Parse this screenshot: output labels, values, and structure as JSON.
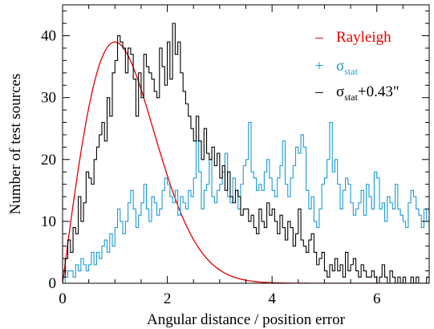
{
  "chart_data": {
    "type": "line",
    "title": "",
    "xlabel": "Angular distance / position error",
    "ylabel": "Number of test sources",
    "xlim": [
      0,
      7
    ],
    "ylim": [
      0,
      45
    ],
    "x_ticks": [
      0,
      2,
      4,
      6
    ],
    "y_ticks": [
      0,
      10,
      20,
      30,
      40
    ],
    "x_tick_labels": [
      "0",
      "2",
      "4",
      "6"
    ],
    "y_tick_labels": [
      "0",
      "10",
      "20",
      "30",
      "40"
    ],
    "x_minor_step": 0.5,
    "y_minor_step": 2,
    "grid": false,
    "legend_position": "top-right",
    "legend": [
      {
        "marker": "–",
        "label": "Rayleigh",
        "sub": "",
        "suffix": "",
        "color": "#e00000"
      },
      {
        "marker": "+",
        "label": "σ",
        "sub": "stat",
        "suffix": "",
        "color": "#1a9ad6"
      },
      {
        "marker": "–",
        "label": "σ",
        "sub": "stat",
        "suffix": "+0.43\"",
        "color": "#000000"
      }
    ],
    "series": [
      {
        "name": "Rayleigh",
        "style": "curve",
        "color": "#e00000",
        "function": "rayleigh",
        "peak_x": 1.0,
        "peak_y": 39
      },
      {
        "name": "σstat",
        "style": "step",
        "color": "#1a9ad6",
        "bin_start": 0.0,
        "bin_width": 0.05,
        "values": [
          0,
          1,
          2,
          2,
          1,
          3,
          2,
          4,
          3,
          2,
          3,
          5,
          3,
          5,
          4,
          6,
          7,
          5,
          8,
          6,
          9,
          12,
          10,
          8,
          10,
          13,
          15,
          12,
          9,
          11,
          13,
          16,
          12,
          10,
          14,
          13,
          11,
          12,
          15,
          17,
          16,
          14,
          13,
          15,
          11,
          14,
          13,
          12,
          15,
          14,
          17,
          23,
          18,
          12,
          15,
          16,
          20,
          14,
          13,
          15,
          16,
          18,
          21,
          14,
          13,
          17,
          15,
          12,
          16,
          19,
          20,
          26,
          18,
          17,
          15,
          16,
          15,
          18,
          20,
          17,
          15,
          14,
          17,
          19,
          23,
          16,
          14,
          17,
          19,
          22,
          21,
          24,
          22,
          15,
          12,
          14,
          10,
          9,
          12,
          16,
          17,
          20,
          26,
          18,
          20,
          16,
          12,
          15,
          17,
          16,
          13,
          11,
          12,
          13,
          15,
          11,
          16,
          14,
          12,
          18,
          17,
          12,
          13,
          10,
          14,
          13,
          12,
          16,
          12,
          11,
          10,
          9,
          13,
          15,
          14,
          12,
          11,
          9,
          12,
          10,
          13,
          12,
          11,
          9,
          14,
          12,
          10,
          13,
          11,
          12,
          12,
          9,
          8,
          10,
          9,
          11,
          8,
          12,
          10,
          9,
          13,
          10,
          9,
          12,
          11,
          12,
          13,
          14,
          12,
          13,
          15,
          15,
          13,
          12,
          8,
          4,
          5,
          6,
          7,
          8,
          7,
          6,
          5,
          6,
          7,
          6,
          10,
          11,
          8,
          6,
          10,
          11,
          8,
          7,
          10,
          8,
          7,
          12,
          6,
          8,
          7,
          10,
          9,
          8,
          6,
          11,
          10,
          9,
          8,
          9,
          10,
          9,
          11,
          10,
          8,
          7,
          5,
          8,
          7,
          6,
          10,
          8,
          7,
          6,
          9,
          7,
          5,
          4,
          6,
          7,
          5,
          6,
          4,
          3,
          4,
          6,
          5,
          3,
          7,
          5,
          4,
          4,
          5,
          6,
          3,
          2,
          1,
          3,
          2,
          1,
          0,
          2,
          1,
          0,
          1,
          2,
          1,
          0,
          0,
          2,
          1,
          1,
          0,
          2,
          0,
          0,
          1,
          2,
          1,
          0,
          1,
          0,
          2,
          1,
          3,
          2,
          0,
          1,
          2,
          3,
          2,
          1,
          2,
          0,
          1,
          3,
          2,
          1,
          2,
          0,
          1,
          1,
          0,
          2,
          3,
          1,
          2,
          0,
          1,
          0,
          1,
          2,
          3,
          2,
          1,
          3,
          2,
          1,
          2,
          3,
          1,
          2,
          3,
          2,
          1,
          2,
          3,
          2
        ]
      },
      {
        "name": "σstat+0.43\"",
        "style": "step",
        "color": "#000000",
        "bin_start": 0.0,
        "bin_width": 0.05,
        "values": [
          1,
          4,
          7,
          5,
          9,
          8,
          14,
          10,
          13,
          18,
          17,
          16,
          20,
          22,
          24,
          26,
          23,
          30,
          27,
          34,
          36,
          40,
          39,
          38,
          34,
          38,
          37,
          33,
          27,
          34,
          30,
          37,
          35,
          34,
          33,
          31,
          30,
          38,
          35,
          32,
          39,
          33,
          42,
          37,
          39,
          34,
          31,
          29,
          27,
          25,
          23,
          27,
          23,
          20,
          25,
          21,
          20,
          22,
          19,
          21,
          17,
          19,
          15,
          18,
          14,
          13,
          15,
          14,
          11,
          12,
          12,
          10,
          11,
          9,
          8,
          12,
          10,
          9,
          13,
          11,
          12,
          10,
          8,
          11,
          9,
          7,
          10,
          9,
          6,
          8,
          12,
          7,
          6,
          5,
          7,
          8,
          5,
          3,
          4,
          5,
          2,
          1,
          3,
          2,
          4,
          2,
          3,
          1,
          5,
          2,
          3,
          4,
          2,
          1,
          3,
          2,
          1,
          1,
          2,
          1,
          0,
          1,
          3,
          1,
          0,
          2,
          1,
          0,
          1,
          0,
          1,
          0,
          0,
          1,
          0,
          1,
          0,
          0,
          0,
          1,
          0,
          0,
          0,
          0,
          0,
          1,
          0,
          0,
          0,
          0,
          0,
          0,
          0,
          0,
          0,
          0,
          0,
          0,
          1,
          0,
          0,
          0,
          0,
          0,
          0,
          0,
          0,
          0,
          0,
          0,
          0,
          0,
          0,
          0,
          0,
          0,
          0,
          0,
          0,
          0,
          0,
          0,
          0,
          0,
          0,
          0,
          0,
          0,
          0,
          0,
          0,
          0,
          0,
          0,
          0,
          0,
          0,
          0,
          0,
          0,
          0,
          0,
          0,
          0,
          0,
          0,
          0,
          0,
          0,
          0,
          0,
          0,
          0,
          0,
          0,
          0,
          0,
          0,
          0,
          0,
          0,
          0,
          0,
          0,
          0,
          0,
          0,
          0,
          0,
          0,
          0,
          0,
          0,
          0,
          0,
          0,
          0,
          0,
          0,
          0,
          0,
          0,
          0,
          0,
          0,
          0,
          0,
          0,
          0,
          0,
          0,
          0,
          0,
          0,
          0,
          0,
          0,
          0,
          0,
          0,
          0,
          0,
          0,
          0,
          0,
          0,
          0,
          0,
          0,
          0,
          0,
          0,
          0,
          0,
          0,
          0,
          0,
          0,
          0,
          0,
          0,
          0,
          0,
          0,
          0,
          0,
          0,
          0,
          0,
          0,
          0,
          0,
          0,
          0,
          0,
          0,
          0,
          0,
          0,
          0,
          0,
          0,
          0,
          0,
          0,
          0,
          0,
          0,
          0,
          0,
          0,
          0,
          0,
          0,
          0,
          0,
          0,
          0,
          0,
          0,
          0,
          0,
          0,
          0,
          0,
          0,
          0,
          0,
          0,
          0,
          0,
          0,
          0,
          0,
          0,
          0,
          0,
          0,
          0,
          0,
          0,
          0,
          0,
          0,
          0
        ]
      }
    ]
  }
}
